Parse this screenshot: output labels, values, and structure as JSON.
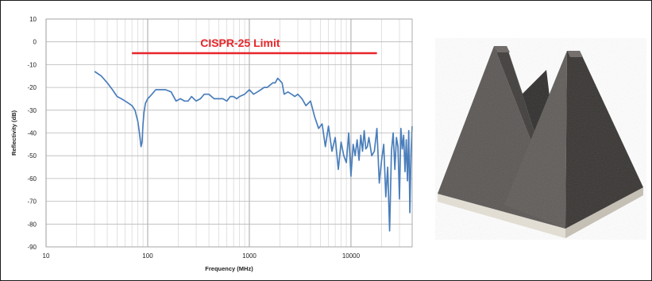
{
  "chart_data": {
    "type": "line",
    "title": "",
    "xlabel": "Frequency (MHz)",
    "ylabel": "Reflectivity (dB)",
    "xscale": "log",
    "xlim": [
      10,
      40000
    ],
    "ylim": [
      -90,
      10
    ],
    "x_ticks": [
      10,
      100,
      1000,
      10000
    ],
    "x_tick_labels": [
      "10",
      "100",
      "1000",
      "10000"
    ],
    "y_ticks": [
      10,
      0,
      -10,
      -20,
      -30,
      -40,
      -50,
      -60,
      -70,
      -80,
      -90
    ],
    "y_tick_labels": [
      "10",
      "0",
      "-10",
      "-20",
      "-30",
      "-40",
      "-50",
      "-60",
      "-70",
      "-80",
      "-90"
    ],
    "grid": true,
    "annotations": [
      {
        "text": "CISPR-25 Limit",
        "x_range": [
          70,
          18000
        ],
        "y": -5,
        "color": "#e8262a"
      }
    ],
    "series": [
      {
        "name": "",
        "color": "#4a7ebb",
        "x": [
          30,
          35,
          40,
          45,
          50,
          55,
          60,
          65,
          70,
          75,
          80,
          83,
          86,
          88,
          90,
          92,
          95,
          100,
          105,
          110,
          120,
          130,
          140,
          150,
          170,
          190,
          210,
          230,
          250,
          270,
          300,
          330,
          360,
          400,
          450,
          500,
          550,
          600,
          650,
          700,
          750,
          800,
          900,
          1000,
          1100,
          1200,
          1300,
          1400,
          1500,
          1600,
          1700,
          1800,
          1900,
          2000,
          2100,
          2200,
          2400,
          2600,
          2800,
          3000,
          3300,
          3600,
          4000,
          4400,
          4800,
          5200,
          5600,
          6000,
          6500,
          7000,
          7500,
          8000,
          8500,
          9000,
          9500,
          10000,
          10500,
          11000,
          11500,
          12000,
          12500,
          13000,
          13500,
          14000,
          14500,
          15000,
          16000,
          17000,
          18000,
          19000,
          20000,
          21000,
          22000,
          23000,
          24000,
          25000,
          26000,
          27000,
          28000,
          29000,
          30000,
          31000,
          32000,
          33000,
          34000,
          35000,
          36000,
          37000,
          38000,
          39000,
          40000
        ],
        "y": [
          -13,
          -15,
          -18,
          -21,
          -24,
          -25,
          -26,
          -27,
          -28,
          -30,
          -35,
          -40,
          -46,
          -44,
          -36,
          -31,
          -27,
          -25,
          -24,
          -23,
          -21,
          -21,
          -21,
          -21,
          -22,
          -26,
          -25,
          -26,
          -26,
          -24,
          -26,
          -25,
          -23,
          -23,
          -25,
          -25,
          -25,
          -26,
          -24,
          -24,
          -25,
          -24,
          -23,
          -21,
          -23,
          -22,
          -21,
          -20,
          -20,
          -19,
          -18,
          -18,
          -16,
          -17,
          -18,
          -23,
          -22,
          -23,
          -24,
          -23,
          -25,
          -28,
          -26,
          -33,
          -38,
          -36,
          -46,
          -37,
          -48,
          -42,
          -56,
          -44,
          -50,
          -53,
          -40,
          -59,
          -45,
          -50,
          -43,
          -52,
          -41,
          -48,
          -39,
          -47,
          -46,
          -42,
          -50,
          -48,
          -38,
          -62,
          -52,
          -45,
          -68,
          -55,
          -83,
          -48,
          -40,
          -56,
          -42,
          -46,
          -69,
          -38,
          -47,
          -41,
          -57,
          -43,
          -61,
          -39,
          -75,
          -48,
          -37
        ]
      }
    ]
  }
}
